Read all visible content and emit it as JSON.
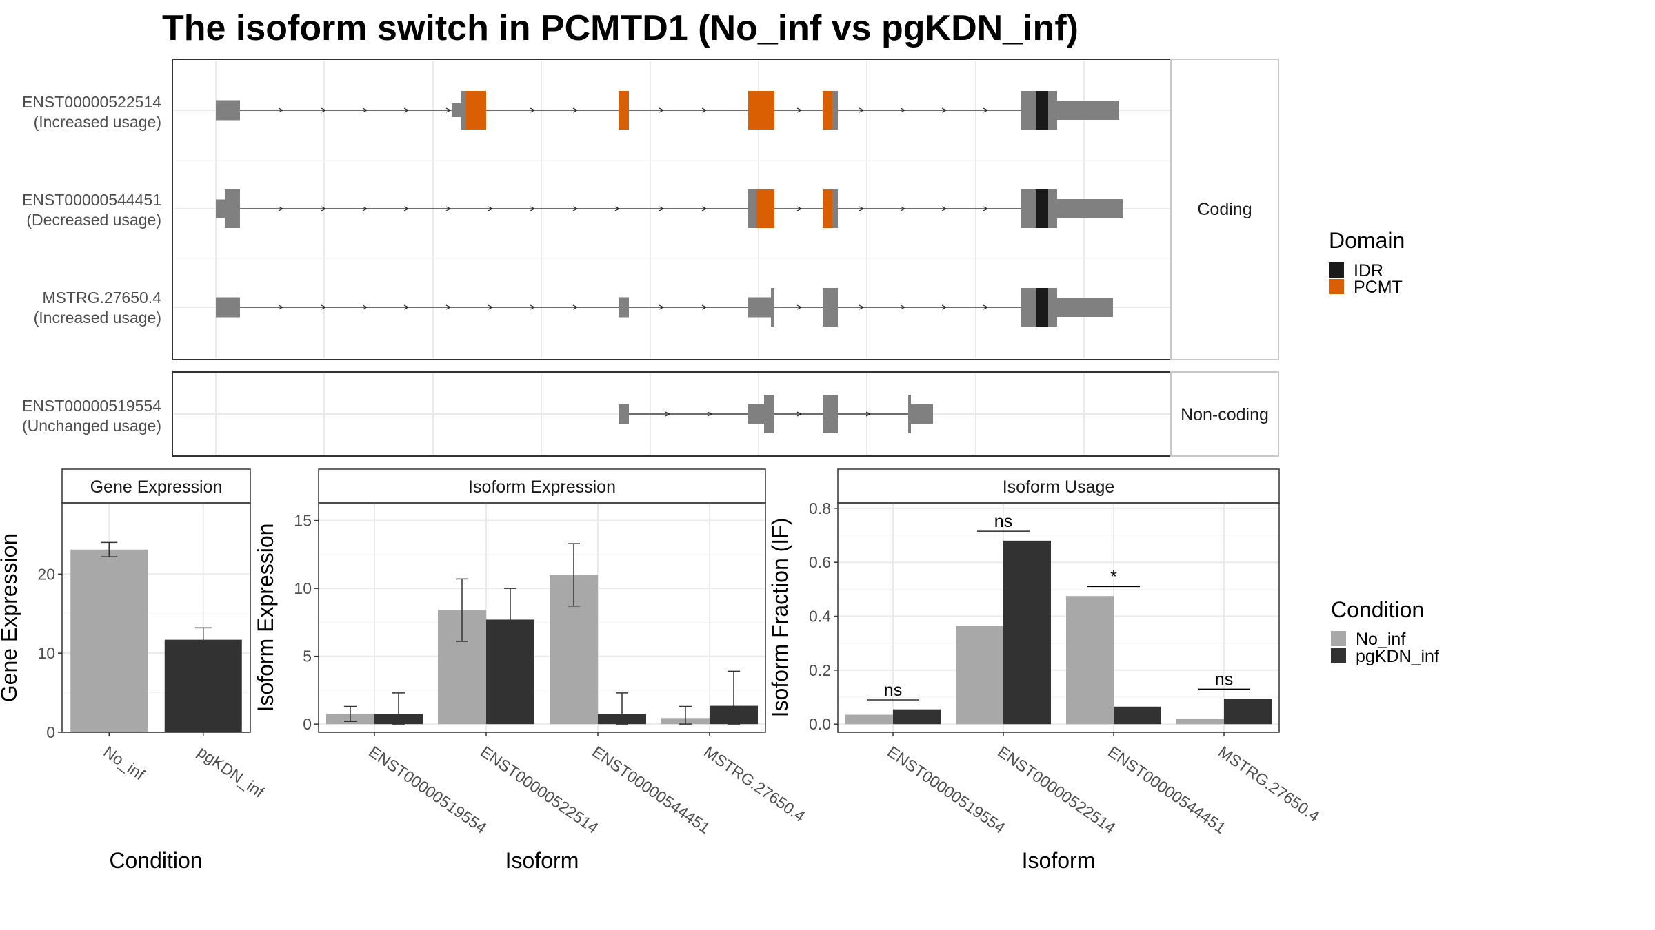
{
  "title": "The isoform switch in PCMTD1 (No_inf vs pgKDN_inf)",
  "colors": {
    "exon": "#808080",
    "IDR": "#1a1a1a",
    "PCMT": "#d95f02",
    "No_inf": "#a8a8a8",
    "pgKDN_inf": "#323232",
    "panel_border": "#333333",
    "grid": "#ebebeb",
    "strip_fill": "#ffffff"
  },
  "structure": {
    "facets": [
      {
        "label": "Coding",
        "rows": [
          {
            "id": "ENST00000522514",
            "note": "(Increased usage)"
          },
          {
            "id": "ENST00000544451",
            "note": "(Decreased usage)"
          },
          {
            "id": "MSTRG.27650.4",
            "note": "(Increased usage)"
          }
        ]
      },
      {
        "label": "Non-coding",
        "rows": [
          {
            "id": "ENST00000519554",
            "note": "(Unchanged usage)"
          }
        ]
      }
    ],
    "domain_legend": {
      "title": "Domain",
      "items": [
        "IDR",
        "PCMT"
      ]
    }
  },
  "chart_data": [
    {
      "type": "bar",
      "title": "Gene Expression",
      "xlabel": "Condition",
      "ylabel": "Gene Expression",
      "categories": [
        "No_inf",
        "pgKDN_inf"
      ],
      "values": [
        23.1,
        11.7
      ],
      "errors": [
        [
          22.2,
          24.0
        ],
        [
          10.2,
          13.2
        ]
      ],
      "ylim": [
        0,
        29
      ],
      "yticks": [
        0,
        10,
        20
      ],
      "grid": true
    },
    {
      "type": "bar",
      "title": "Isoform Expression",
      "xlabel": "Isoform",
      "ylabel": "Isoform Expression",
      "categories": [
        "ENST00000519554",
        "ENST00000522514",
        "ENST00000544451",
        "MSTRG.27650.4"
      ],
      "series": [
        {
          "name": "No_inf",
          "values": [
            0.75,
            8.4,
            11.0,
            0.45
          ],
          "errors": [
            [
              0.2,
              1.3
            ],
            [
              6.1,
              10.7
            ],
            [
              8.7,
              13.3
            ],
            [
              0.0,
              1.3
            ]
          ]
        },
        {
          "name": "pgKDN_inf",
          "values": [
            0.75,
            7.7,
            0.75,
            1.35
          ],
          "errors": [
            [
              0.0,
              2.3
            ],
            [
              5.4,
              10.0
            ],
            [
              0.0,
              2.3
            ],
            [
              0.0,
              3.9
            ]
          ]
        }
      ],
      "ylim": [
        -0.6,
        16.3
      ],
      "yticks": [
        0,
        5,
        10,
        15
      ],
      "grid": true
    },
    {
      "type": "bar",
      "title": "Isoform Usage",
      "xlabel": "Isoform",
      "ylabel": "Isoform Fraction (IF)",
      "categories": [
        "ENST00000519554",
        "ENST00000522514",
        "ENST00000544451",
        "MSTRG.27650.4"
      ],
      "series": [
        {
          "name": "No_inf",
          "values": [
            0.035,
            0.365,
            0.475,
            0.02
          ]
        },
        {
          "name": "pgKDN_inf",
          "values": [
            0.055,
            0.68,
            0.065,
            0.095
          ]
        }
      ],
      "significance": [
        {
          "label": "ns",
          "y": 0.09
        },
        {
          "label": "ns",
          "y": 0.715
        },
        {
          "label": "*",
          "y": 0.51
        },
        {
          "label": "ns",
          "y": 0.13
        }
      ],
      "ylim": [
        -0.03,
        0.82
      ],
      "yticks": [
        0.0,
        0.2,
        0.4,
        0.6,
        0.8
      ],
      "ytick_labels": [
        "0.0",
        "0.2",
        "0.4",
        "0.6",
        "0.8"
      ],
      "grid": true
    }
  ],
  "condition_legend": {
    "title": "Condition",
    "items": [
      "No_inf",
      "pgKDN_inf"
    ]
  }
}
